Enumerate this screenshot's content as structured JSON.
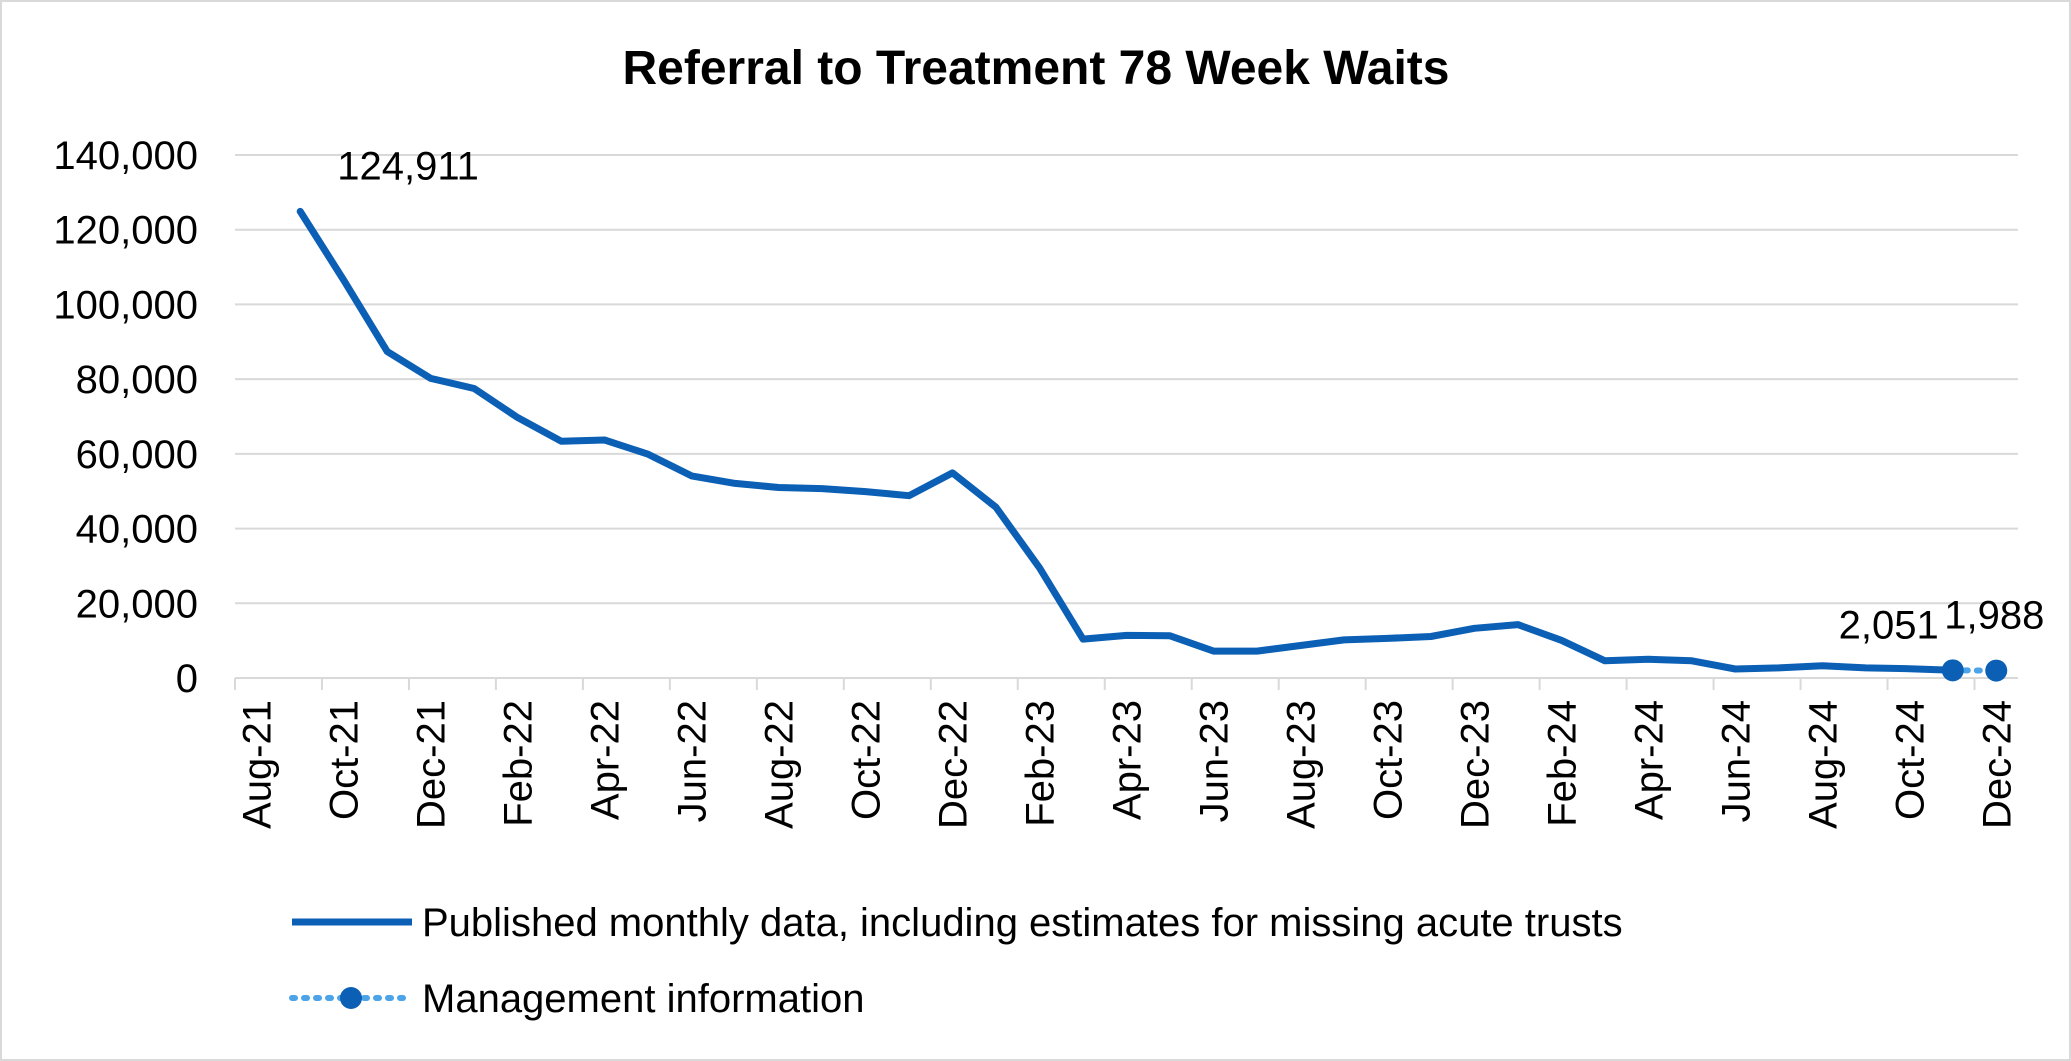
{
  "chart_data": {
    "type": "line",
    "title": "Referral to Treatment 78 Week Waits",
    "xlabel": "",
    "ylabel": "",
    "ylim": [
      0,
      140000
    ],
    "yticks": [
      "0",
      "20,000",
      "40,000",
      "60,000",
      "80,000",
      "100,000",
      "120,000",
      "140,000"
    ],
    "xticks": [
      "Aug-21",
      "Oct-21",
      "Dec-21",
      "Feb-22",
      "Apr-22",
      "Jun-22",
      "Aug-22",
      "Oct-22",
      "Dec-22",
      "Feb-23",
      "Apr-23",
      "Jun-23",
      "Aug-23",
      "Oct-23",
      "Dec-23",
      "Feb-24",
      "Apr-24",
      "Jun-24",
      "Aug-24",
      "Oct-24",
      "Dec-24"
    ],
    "grid": true,
    "legend_position": "bottom",
    "series": [
      {
        "name": "Published monthly data, including estimates for missing acute trusts",
        "style": "solid",
        "color": "#0b5fb5",
        "x": [
          "Sep-21",
          "Oct-21",
          "Nov-21",
          "Dec-21",
          "Jan-22",
          "Feb-22",
          "Mar-22",
          "Apr-22",
          "May-22",
          "Jun-22",
          "Jul-22",
          "Aug-22",
          "Sep-22",
          "Oct-22",
          "Nov-22",
          "Dec-22",
          "Jan-23",
          "Feb-23",
          "Mar-23",
          "Apr-23",
          "May-23",
          "Jun-23",
          "Jul-23",
          "Aug-23",
          "Sep-23",
          "Oct-23",
          "Nov-23",
          "Dec-23",
          "Jan-24",
          "Feb-24",
          "Mar-24",
          "Apr-24",
          "May-24",
          "Jun-24",
          "Jul-24",
          "Aug-24",
          "Sep-24",
          "Oct-24",
          "Nov-24"
        ],
        "values": [
          124911,
          106500,
          87400,
          80200,
          77500,
          69700,
          63400,
          63700,
          59900,
          54100,
          52100,
          51000,
          50700,
          49900,
          48800,
          54900,
          45700,
          29500,
          10400,
          11400,
          11300,
          7200,
          7200,
          8700,
          10200,
          10600,
          11100,
          13300,
          14300,
          10100,
          4600,
          5000,
          4600,
          2400,
          2700,
          3300,
          2700,
          2500,
          2051
        ]
      },
      {
        "name": "Management information",
        "style": "dotted",
        "color": "#4da3e8",
        "marker_color": "#0b5fb5",
        "x": [
          "Nov-24",
          "Dec-24"
        ],
        "values": [
          2051,
          1988
        ]
      }
    ],
    "data_labels": [
      {
        "x": "Sep-21",
        "text": "124,911"
      },
      {
        "x": "Nov-24",
        "text": "2,051"
      },
      {
        "x": "Dec-24",
        "text": "1,988"
      }
    ]
  }
}
